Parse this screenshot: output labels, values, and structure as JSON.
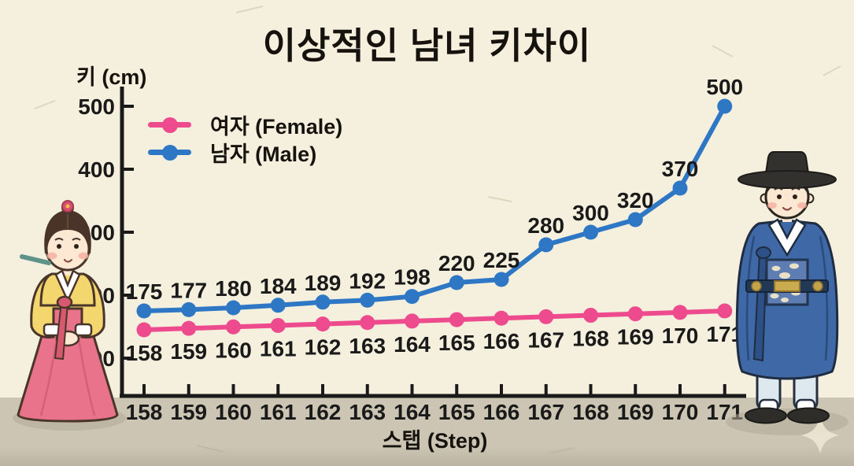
{
  "title": "이상적인 남녀 키차이",
  "chart_data": {
    "type": "line",
    "title": "이상적인 남녀 키차이",
    "xlabel": "스탭 (Step)",
    "ylabel": "키 (cm)",
    "x": [
      158,
      159,
      160,
      161,
      162,
      163,
      164,
      165,
      166,
      167,
      168,
      169,
      170,
      171
    ],
    "y_ticks": [
      100,
      200,
      300,
      400,
      500
    ],
    "ylim": [
      40,
      530
    ],
    "grid": false,
    "legend_position": "top-left",
    "point_labels": true,
    "series": [
      {
        "name": "여자 (Female)",
        "color": "#ee4b8e",
        "values": [
          158,
          159,
          160,
          161,
          162,
          163,
          164,
          165,
          166,
          167,
          168,
          169,
          170,
          171
        ]
      },
      {
        "name": "남자 (Male)",
        "color": "#2e77c4",
        "values": [
          175,
          177,
          180,
          184,
          189,
          192,
          198,
          220,
          225,
          280,
          300,
          320,
          370,
          500
        ]
      }
    ]
  },
  "legend": {
    "female_label": "여자 (Female)",
    "male_label": "남자 (Male)"
  },
  "colors": {
    "background": "#f5f0de",
    "floor": "#ccc5b4",
    "axis": "#1a1a1a",
    "female": "#ee4b8e",
    "male": "#2e77c4"
  },
  "illustrations": {
    "female": "woman in pink-and-yellow hanbok",
    "male": "man in blue official hanbok with black gat hat"
  }
}
